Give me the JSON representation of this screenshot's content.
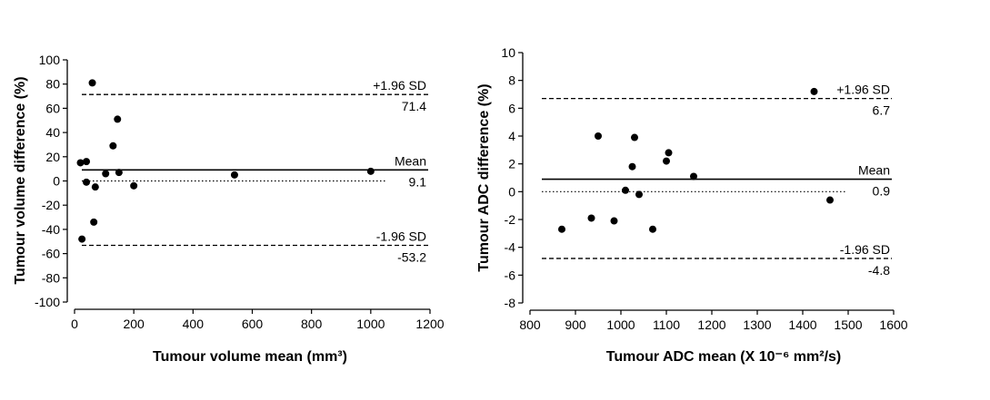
{
  "chart_data": [
    {
      "type": "scatter",
      "xlabel": "Tumour volume mean (mm³)",
      "ylabel": "Tumour volume difference (%)",
      "xlim": [
        0,
        1200
      ],
      "ylim": [
        -100,
        100
      ],
      "xticks": [
        0,
        200,
        400,
        600,
        800,
        1000,
        1200
      ],
      "yticks": [
        -100,
        -80,
        -60,
        -40,
        -20,
        0,
        20,
        40,
        60,
        80,
        100
      ],
      "grid": false,
      "points": [
        {
          "x": 20,
          "y": 15
        },
        {
          "x": 40,
          "y": 16
        },
        {
          "x": 60,
          "y": 81
        },
        {
          "x": 40,
          "y": -1
        },
        {
          "x": 70,
          "y": -5
        },
        {
          "x": 65,
          "y": -34
        },
        {
          "x": 25,
          "y": -48
        },
        {
          "x": 105,
          "y": 6
        },
        {
          "x": 130,
          "y": 29
        },
        {
          "x": 145,
          "y": 51
        },
        {
          "x": 150,
          "y": 7
        },
        {
          "x": 200,
          "y": -4
        },
        {
          "x": 540,
          "y": 5
        },
        {
          "x": 1000,
          "y": 8
        }
      ],
      "reference_lines": [
        {
          "name": "upper_loa",
          "y": 71.4,
          "style": "dashed",
          "label": "+1.96 SD",
          "value_label": "71.4"
        },
        {
          "name": "mean",
          "y": 9.1,
          "style": "solid",
          "label": "Mean",
          "value_label": "9.1"
        },
        {
          "name": "zero",
          "y": 0,
          "style": "dotted",
          "label": "",
          "value_label": ""
        },
        {
          "name": "lower_loa",
          "y": -53.2,
          "style": "dashed",
          "label": "-1.96 SD",
          "value_label": "-53.2"
        }
      ]
    },
    {
      "type": "scatter",
      "xlabel": "Tumour ADC mean (X 10⁻⁶ mm²/s)",
      "ylabel": "Tumour ADC difference (%)",
      "xlim": [
        800,
        1600
      ],
      "ylim": [
        -8,
        10
      ],
      "xticks": [
        800,
        900,
        1000,
        1100,
        1200,
        1300,
        1400,
        1500,
        1600
      ],
      "yticks": [
        -8,
        -6,
        -4,
        -2,
        0,
        2,
        4,
        6,
        8,
        10
      ],
      "grid": false,
      "points": [
        {
          "x": 870,
          "y": -2.7
        },
        {
          "x": 935,
          "y": -1.9
        },
        {
          "x": 950,
          "y": 4.0
        },
        {
          "x": 985,
          "y": -2.1
        },
        {
          "x": 1010,
          "y": 0.1
        },
        {
          "x": 1025,
          "y": 1.8
        },
        {
          "x": 1030,
          "y": 3.9
        },
        {
          "x": 1040,
          "y": -0.2
        },
        {
          "x": 1070,
          "y": -2.7
        },
        {
          "x": 1100,
          "y": 2.2
        },
        {
          "x": 1105,
          "y": 2.8
        },
        {
          "x": 1160,
          "y": 1.1
        },
        {
          "x": 1425,
          "y": 7.2
        },
        {
          "x": 1460,
          "y": -0.6
        }
      ],
      "reference_lines": [
        {
          "name": "upper_loa",
          "y": 6.7,
          "style": "dashed",
          "label": "+1.96 SD",
          "value_label": "6.7"
        },
        {
          "name": "mean",
          "y": 0.9,
          "style": "solid",
          "label": "Mean",
          "value_label": "0.9"
        },
        {
          "name": "zero",
          "y": 0,
          "style": "dotted",
          "label": "",
          "value_label": ""
        },
        {
          "name": "lower_loa",
          "y": -4.8,
          "style": "dashed",
          "label": "-1.96 SD",
          "value_label": "-4.8"
        }
      ]
    }
  ]
}
